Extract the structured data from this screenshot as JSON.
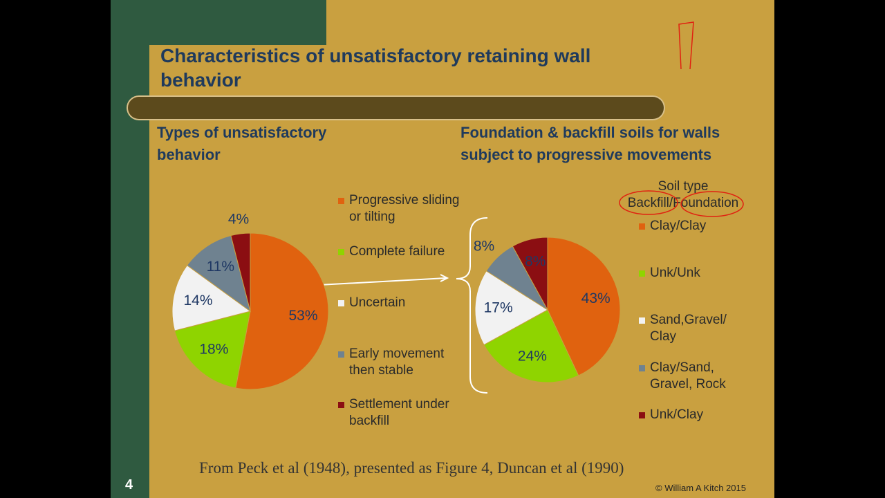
{
  "slide_title": "Characteristics of unsatisfactory retaining wall behavior",
  "chart_data": [
    {
      "type": "pie",
      "title": "Types of unsatisfactory behavior",
      "categories": [
        "Progressive sliding or tilting",
        "Complete failure",
        "Uncertain",
        "Early movement then stable",
        "Settlement under backfill"
      ],
      "values": [
        53,
        18,
        14,
        11,
        4
      ],
      "value_labels": [
        "53%",
        "18%",
        "14%",
        "11%",
        "4%"
      ],
      "colors": [
        "#e0620f",
        "#8fd400",
        "#f2f2f2",
        "#6f8290",
        "#8b0e12"
      ]
    },
    {
      "type": "pie",
      "title": "Foundation & backfill soils for walls subject to progressive movements",
      "legend_title": [
        "Soil type",
        "Backfill/Foundation"
      ],
      "categories": [
        "Clay/Clay",
        "Unk/Unk",
        "Sand,Gravel/ Clay",
        "Clay/Sand, Gravel, Rock",
        "Unk/Clay"
      ],
      "values": [
        43,
        24,
        17,
        8,
        8
      ],
      "value_labels": [
        "43%",
        "24%",
        "17%",
        "8%",
        "8%"
      ],
      "colors": [
        "#e0620f",
        "#8fd400",
        "#f2f2f2",
        "#6f8290",
        "#8b0e12"
      ]
    }
  ],
  "source": "From Peck et al (1948), presented as Figure 4, Duncan et al (1990)",
  "page_number": "4",
  "copyright": "© William A Kitch 2015"
}
